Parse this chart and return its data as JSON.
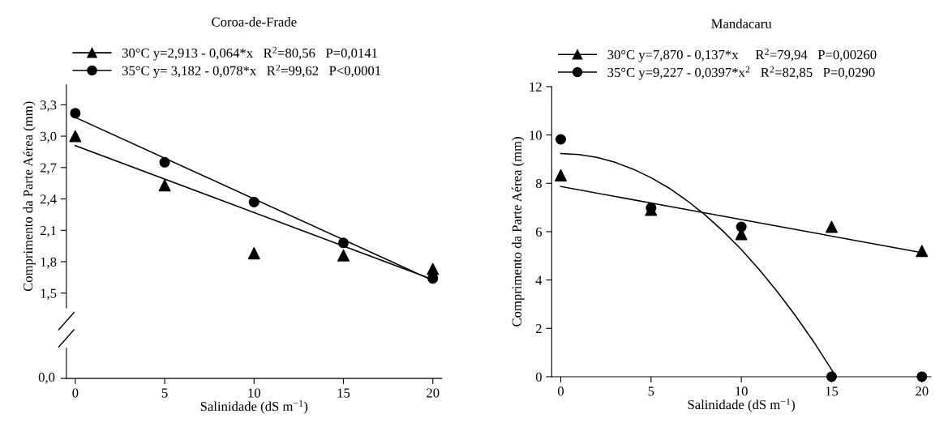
{
  "chart_data": [
    {
      "type": "scatter",
      "title": "Coroa-de-Frade",
      "xlabel": "Salinidade (dS m$^{−1}$)",
      "ylabel": "Comprimento da Parte Aérea (mm)",
      "xlim": [
        -0.5,
        20.5
      ],
      "xticks": [
        0,
        5,
        10,
        15,
        20
      ],
      "ylim": [
        1.36,
        3.49
      ],
      "yticks": [
        {
          "value": 1.5,
          "label": "1,5"
        },
        {
          "value": 1.8,
          "label": "1,8"
        },
        {
          "value": 2.1,
          "label": "2,1"
        },
        {
          "value": 2.4,
          "label": "2,4"
        },
        {
          "value": 2.7,
          "label": "2,7"
        },
        {
          "value": 3.0,
          "label": "3,0"
        },
        {
          "value": 3.3,
          "label": "3,3"
        }
      ],
      "annotations": [
        "0,0"
      ],
      "legend": "top",
      "grid": false,
      "series": [
        {
          "name": "30°C y=2,913 - 0,064*x   R$^{2}$=80,56   P=0,0141",
          "color": "#000000",
          "marker": "triangle",
          "x": [
            0,
            5,
            10,
            15,
            20
          ],
          "values": [
            3.0,
            2.53,
            1.88,
            1.86,
            1.73
          ]
        },
        {
          "name": "35°C y= 3,182 - 0,078*x   R$^{2}$=99,62   P<0,0001",
          "color": "#000000",
          "marker": "circle",
          "x": [
            0,
            5,
            10,
            15,
            20
          ],
          "values": [
            3.22,
            2.75,
            2.37,
            1.98,
            1.64
          ]
        },
        {
          "type": "line",
          "color": "#000000",
          "x": [
            0,
            20
          ],
          "values": [
            2.91,
            1.63
          ]
        },
        {
          "type": "line",
          "color": "#000000",
          "x": [
            0,
            20
          ],
          "values": [
            3.18,
            1.62
          ]
        }
      ]
    },
    {
      "type": "scatter",
      "title": "Mandacaru",
      "xlabel": "Salinidade (dS m$^{−1}$)",
      "ylabel": "Comprimento da Parte Aérea (mm)",
      "xlim": [
        -0.5,
        20.5
      ],
      "xticks": [
        0,
        5,
        10,
        15,
        20
      ],
      "ylim": [
        0,
        12
      ],
      "yticks": [
        0,
        2,
        4,
        6,
        8,
        10,
        12
      ],
      "legend": "top",
      "grid": false,
      "series": [
        {
          "name": "30°C y=7,870 - 0,137*x     R$^{2}$=79,94   P=0,00260",
          "color": "#000000",
          "marker": "triangle",
          "x": [
            0,
            5,
            10,
            15,
            20
          ],
          "values": [
            8.33,
            6.9,
            5.9,
            6.2,
            5.2
          ]
        },
        {
          "name": "35°C y=9,227 - 0,0397*x$^{2}$   R$^{2}$=82,85   P=0,0290",
          "color": "#000000",
          "marker": "circle",
          "x": [
            0,
            5,
            10,
            15,
            20
          ],
          "values": [
            9.82,
            6.98,
            6.2,
            0,
            0
          ]
        },
        {
          "type": "line",
          "color": "#000000",
          "x": [
            0,
            20
          ],
          "values": [
            7.87,
            5.13
          ]
        },
        {
          "type": "line",
          "color": "#000000",
          "x": [
            0,
            1,
            2,
            3,
            4,
            5,
            6,
            7,
            8,
            9,
            10,
            11,
            12,
            13,
            14,
            15,
            15.2
          ],
          "values": [
            9.23,
            9.19,
            9.07,
            8.87,
            8.59,
            8.23,
            7.8,
            7.28,
            6.69,
            6.01,
            5.26,
            4.42,
            3.51,
            2.52,
            1.45,
            0.29,
            0.06
          ]
        }
      ]
    }
  ]
}
